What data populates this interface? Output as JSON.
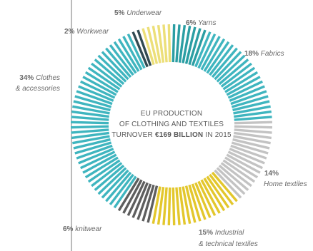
{
  "chart_data": {
    "type": "pie",
    "title": "EU PRODUCTION OF CLOTHING AND TEXTILES TURNOVER €169 BILLION IN 2015",
    "center_text": {
      "line1": "EU PRODUCTION",
      "line2": "OF CLOTHING AND TEXTILES",
      "line3_prefix": "TURNOVER ",
      "line3_bold": "€169 BILLION",
      "line3_suffix": " IN 2015"
    },
    "slices": [
      {
        "pct": "6%",
        "value": 6,
        "label": "Yarns",
        "color": "#2b9ea3"
      },
      {
        "pct": "18%",
        "value": 18,
        "label": "Fabrics",
        "color": "#3fb5bf"
      },
      {
        "pct": "14%",
        "value": 14,
        "label": "Home textiles",
        "color": "#c3c3c3"
      },
      {
        "pct": "15%",
        "value": 15,
        "label": "Industrial & technical textiles",
        "label_line1": "Industrial",
        "label_line2": "& technical textiles",
        "color": "#e3c72c"
      },
      {
        "pct": "6%",
        "value": 6,
        "label": "knitwear",
        "color": "#5e5e5e"
      },
      {
        "pct": "34%",
        "value": 34,
        "label": "Clothes & accessories",
        "label_line1": "Clothes",
        "label_line2": "& accessories",
        "color": "#3fb5bf"
      },
      {
        "pct": "2%",
        "value": 2,
        "label": "Workwear",
        "color": "#314a52"
      },
      {
        "pct": "5%",
        "value": 5,
        "label": "Underwear",
        "color": "#ecdf78"
      }
    ],
    "legend": "none"
  }
}
